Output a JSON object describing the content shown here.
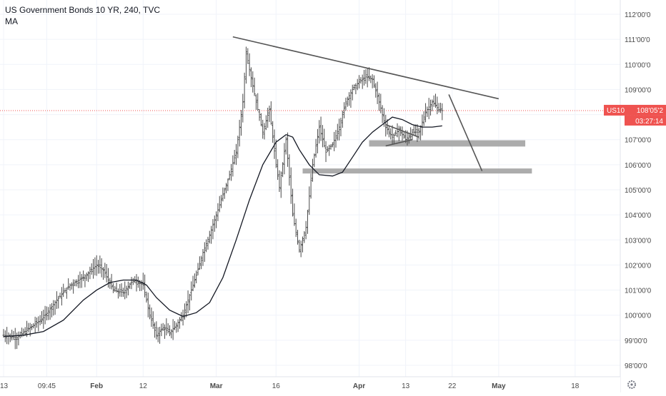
{
  "header": {
    "title": "US Government Bonds 10 YR, 240, TVC",
    "indicator": "MA"
  },
  "price_badge": {
    "symbol": "US10",
    "price": "108'05'2",
    "countdown": "03:27:14",
    "color": "#ef5350"
  },
  "colors": {
    "bars": "#4a4a4a",
    "ma": "#131722",
    "trendline": "#555555",
    "zones": "#9e9e9e",
    "price_line": "#ef5350",
    "axis_text": "#4a4a4a"
  },
  "chart_data": {
    "type": "candlestick",
    "title": "US Government Bonds 10 YR, 240, TVC",
    "ylim": [
      97.7,
      112.4
    ],
    "y_ticks": [
      {
        "value": 98,
        "label": "98'00'0"
      },
      {
        "value": 99,
        "label": "99'00'0"
      },
      {
        "value": 100,
        "label": "100'00'0"
      },
      {
        "value": 101,
        "label": "101'00'0"
      },
      {
        "value": 102,
        "label": "102'00'0"
      },
      {
        "value": 103,
        "label": "103'00'0"
      },
      {
        "value": 104,
        "label": "104'00'0"
      },
      {
        "value": 105,
        "label": "105'00'0"
      },
      {
        "value": 106,
        "label": "106'00'0"
      },
      {
        "value": 107,
        "label": "107'00'0"
      },
      {
        "value": 108,
        "label": "108'00'0"
      },
      {
        "value": 109,
        "label": "109'00'0"
      },
      {
        "value": 110,
        "label": "110'00'0"
      },
      {
        "value": 111,
        "label": "111'00'0"
      },
      {
        "value": 112,
        "label": "112'00'0"
      }
    ],
    "x_ticks": [
      {
        "t": 0,
        "label": "13"
      },
      {
        "t": 13,
        "label": "09:45"
      },
      {
        "t": 28,
        "label": "Feb"
      },
      {
        "t": 42,
        "label": "12"
      },
      {
        "t": 64,
        "label": "Mar"
      },
      {
        "t": 82,
        "label": "16"
      },
      {
        "t": 107,
        "label": "Apr"
      },
      {
        "t": 121,
        "label": "13"
      },
      {
        "t": 135,
        "label": "22"
      },
      {
        "t": 149,
        "label": "May"
      },
      {
        "t": 172,
        "label": "18"
      }
    ],
    "x_range": [
      0,
      186
    ],
    "current_price": 108.16,
    "price_path": [
      [
        0,
        99.2
      ],
      [
        4,
        99.1
      ],
      [
        8,
        99.5
      ],
      [
        12,
        99.9
      ],
      [
        16,
        100.6
      ],
      [
        20,
        101.2
      ],
      [
        24,
        101.5
      ],
      [
        28,
        102.0
      ],
      [
        30,
        101.8
      ],
      [
        33,
        101.0
      ],
      [
        36,
        100.9
      ],
      [
        39,
        101.4
      ],
      [
        42,
        101.2
      ],
      [
        44,
        100.0
      ],
      [
        46,
        99.2
      ],
      [
        48,
        99.5
      ],
      [
        50,
        99.3
      ],
      [
        52,
        99.6
      ],
      [
        54,
        100.0
      ],
      [
        56,
        100.8
      ],
      [
        58,
        101.6
      ],
      [
        60,
        102.5
      ],
      [
        62,
        103.2
      ],
      [
        64,
        104.0
      ],
      [
        66,
        104.8
      ],
      [
        68,
        105.6
      ],
      [
        70,
        106.5
      ],
      [
        72,
        108.5
      ],
      [
        73,
        110.5
      ],
      [
        74,
        109.8
      ],
      [
        76,
        108.5
      ],
      [
        78,
        107.3
      ],
      [
        80,
        108.2
      ],
      [
        82,
        106.0
      ],
      [
        83,
        105.1
      ],
      [
        85,
        107.0
      ],
      [
        87,
        104.0
      ],
      [
        89,
        102.6
      ],
      [
        91,
        103.5
      ],
      [
        93,
        106.0
      ],
      [
        95,
        107.5
      ],
      [
        97,
        106.5
      ],
      [
        99,
        106.8
      ],
      [
        101,
        107.5
      ],
      [
        103,
        108.5
      ],
      [
        105,
        109.0
      ],
      [
        107,
        109.3
      ],
      [
        109,
        109.5
      ],
      [
        111,
        109.4
      ],
      [
        113,
        108.5
      ],
      [
        115,
        107.5
      ],
      [
        117,
        107.1
      ],
      [
        119,
        107.4
      ],
      [
        121,
        107.0
      ],
      [
        123,
        107.3
      ],
      [
        125,
        107.3
      ],
      [
        127,
        108.1
      ],
      [
        129,
        108.5
      ],
      [
        131,
        108.2
      ],
      [
        132,
        108.16
      ]
    ],
    "series": [
      {
        "name": "MA",
        "points": [
          [
            0,
            99.15
          ],
          [
            6,
            99.2
          ],
          [
            12,
            99.35
          ],
          [
            18,
            99.8
          ],
          [
            24,
            100.6
          ],
          [
            28,
            101.0
          ],
          [
            32,
            101.3
          ],
          [
            36,
            101.4
          ],
          [
            40,
            101.4
          ],
          [
            43,
            101.2
          ],
          [
            46,
            100.7
          ],
          [
            50,
            100.2
          ],
          [
            54,
            99.95
          ],
          [
            58,
            100.1
          ],
          [
            62,
            100.5
          ],
          [
            66,
            101.5
          ],
          [
            70,
            103.0
          ],
          [
            74,
            104.6
          ],
          [
            78,
            106.0
          ],
          [
            82,
            106.9
          ],
          [
            85,
            107.2
          ],
          [
            87,
            107.1
          ],
          [
            89,
            106.6
          ],
          [
            92,
            106.0
          ],
          [
            95,
            105.6
          ],
          [
            99,
            105.55
          ],
          [
            102,
            105.7
          ],
          [
            105,
            106.3
          ],
          [
            108,
            106.9
          ],
          [
            111,
            107.3
          ],
          [
            114,
            107.6
          ],
          [
            117,
            107.9
          ],
          [
            120,
            107.8
          ],
          [
            123,
            107.6
          ],
          [
            126,
            107.5
          ],
          [
            129,
            107.5
          ],
          [
            132,
            107.55
          ]
        ]
      }
    ],
    "annotations": {
      "trendlines": [
        {
          "from": [
            69,
            111.1
          ],
          "to": [
            149,
            108.63
          ]
        },
        {
          "from": [
            115,
            107.6
          ],
          "to": [
            125,
            107.1
          ]
        },
        {
          "from": [
            115,
            106.75
          ],
          "to": [
            123,
            107.0
          ]
        },
        {
          "from": [
            134,
            108.8
          ],
          "to": [
            144,
            105.75
          ]
        }
      ],
      "zones": [
        {
          "x0": 110,
          "x1": 157,
          "y": 106.85,
          "height": 0.25
        },
        {
          "x0": 90,
          "x1": 159,
          "y": 105.75,
          "height": 0.2
        }
      ]
    }
  }
}
